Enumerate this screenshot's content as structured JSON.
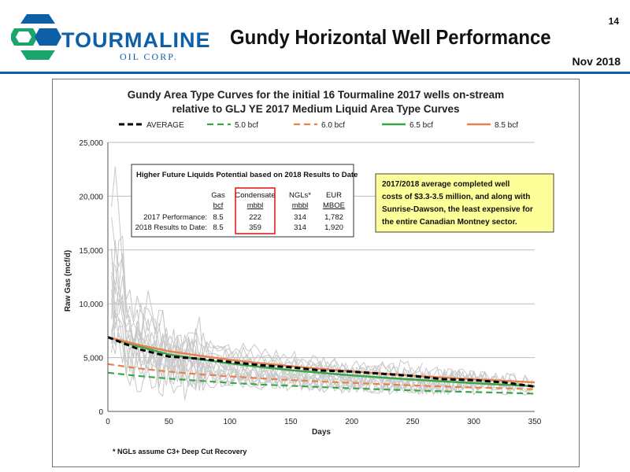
{
  "header": {
    "logo_name": "TOURMALINE",
    "logo_sub": "OIL CORP.",
    "title": "Gundy Horizontal Well Performance",
    "page_number": "14",
    "date": "Nov 2018"
  },
  "colors": {
    "brand_blue": "#0d5fa8",
    "logo_green": "#1aa66b",
    "average": "#000000",
    "tc_5": "#3aa64a",
    "tc_6": "#e8814a",
    "tc_65": "#3aa64a",
    "tc_85": "#e8814a",
    "wells": "#c8c8c8",
    "callout_bg": "#ffff99",
    "condensate_box": "#e02020"
  },
  "chart_data": {
    "type": "line",
    "title": "Gundy Area Type Curves for the initial 16 Tourmaline 2017 wells on-stream",
    "subtitle": "relative to GLJ YE 2017 Medium Liquid Area Type Curves",
    "xlabel": "Days",
    "ylabel": "Raw Gas (mcf/d)",
    "xlim": [
      0,
      350
    ],
    "ylim": [
      0,
      25000
    ],
    "x_ticks": [
      "0",
      "50",
      "100",
      "150",
      "200",
      "250",
      "300",
      "350"
    ],
    "y_ticks": [
      "0",
      "5,000",
      "10,000",
      "15,000",
      "20,000",
      "25,000"
    ],
    "grid": "horizontal",
    "legend_position": "top",
    "x": [
      0,
      25,
      50,
      75,
      100,
      125,
      150,
      175,
      200,
      225,
      250,
      275,
      300,
      325,
      350
    ],
    "series": [
      {
        "name": "AVERAGE",
        "style": "dashed",
        "values": [
          6900,
          5800,
          5100,
          4900,
          4600,
          4300,
          4100,
          3800,
          3700,
          3500,
          3300,
          3000,
          2900,
          2700,
          2300
        ]
      },
      {
        "name": "5.0 bcf",
        "style": "dashed",
        "values": [
          3600,
          3300,
          3050,
          2850,
          2650,
          2500,
          2380,
          2260,
          2150,
          2050,
          1950,
          1870,
          1800,
          1730,
          1650
        ]
      },
      {
        "name": "6.0 bcf",
        "style": "dashed",
        "values": [
          4400,
          4000,
          3700,
          3450,
          3250,
          3080,
          2920,
          2780,
          2650,
          2530,
          2420,
          2320,
          2230,
          2150,
          2060
        ]
      },
      {
        "name": "6.5 bcf",
        "style": "solid",
        "values": [
          6900,
          6050,
          5300,
          4850,
          4450,
          4120,
          3830,
          3580,
          3350,
          3150,
          2960,
          2790,
          2630,
          2480,
          2350
        ]
      },
      {
        "name": "8.5 bcf",
        "style": "solid",
        "values": [
          6900,
          6200,
          5600,
          5180,
          4800,
          4480,
          4200,
          3950,
          3720,
          3520,
          3330,
          3150,
          2990,
          2840,
          2700
        ]
      }
    ],
    "table": {
      "title": "Higher Future Liquids Potential based on 2018 Results to Date",
      "columns": [
        {
          "head": "Gas",
          "unit": "bcf"
        },
        {
          "head": "Condensate",
          "unit": "mbbl"
        },
        {
          "head": "NGLs*",
          "unit": "mbbl"
        },
        {
          "head": "EUR",
          "unit": "MBOE"
        }
      ],
      "rows": [
        {
          "label": "2017 Performance:",
          "values": [
            "8.5",
            "222",
            "314",
            "1,782"
          ]
        },
        {
          "label": "2018 Results to Date:",
          "values": [
            "8.5",
            "359",
            "314",
            "1,920"
          ]
        }
      ]
    },
    "callout": [
      "2017/2018 average completed well",
      "costs of $3.3-3.5 million, and along with",
      "Sunrise-Dawson, the least expensive for",
      "the entire Canadian Montney sector."
    ],
    "footnote": "* NGLs assume C3+ Deep Cut Recovery"
  }
}
